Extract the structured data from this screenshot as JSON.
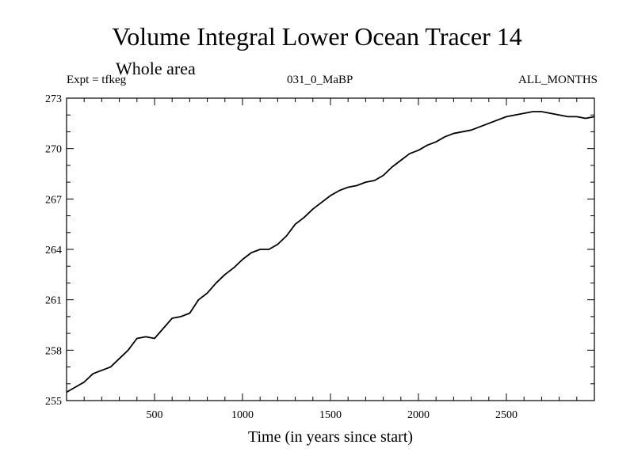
{
  "chart_data": {
    "type": "line",
    "title": "Volume Integral Lower Ocean Tracer 14",
    "subtitle": "Whole area",
    "experiment": "Expt = tfkeg",
    "period": "031_0_MaBP",
    "months": "ALL_MONTHS",
    "xlabel": "Time (in years since start)",
    "ylabel": "",
    "xlim": [
      0,
      3000
    ],
    "ylim": [
      255,
      273
    ],
    "xticks": [
      500,
      1000,
      1500,
      2000,
      2500
    ],
    "yticks": [
      255,
      258,
      261,
      264,
      267,
      270,
      273
    ],
    "grid": false,
    "series": [
      {
        "x": [
          0,
          50,
          100,
          150,
          200,
          250,
          300,
          350,
          400,
          450,
          500,
          550,
          600,
          650,
          700,
          750,
          800,
          850,
          900,
          950,
          1000,
          1050,
          1100,
          1150,
          1200,
          1250,
          1300,
          1350,
          1400,
          1450,
          1500,
          1550,
          1600,
          1650,
          1700,
          1750,
          1800,
          1850,
          1900,
          1950,
          2000,
          2050,
          2100,
          2150,
          2200,
          2250,
          2300,
          2350,
          2400,
          2450,
          2500,
          2550,
          2600,
          2650,
          2700,
          2750,
          2800,
          2850,
          2900,
          2950,
          3000
        ],
        "y": [
          255.5,
          255.8,
          256.1,
          256.6,
          256.8,
          257.0,
          257.5,
          258.0,
          258.7,
          258.8,
          258.7,
          259.3,
          259.9,
          260.0,
          260.2,
          261.0,
          261.4,
          262.0,
          262.5,
          262.9,
          263.4,
          263.8,
          264.0,
          264.0,
          264.3,
          264.8,
          265.5,
          265.9,
          266.4,
          266.8,
          267.2,
          267.5,
          267.7,
          267.8,
          268.0,
          268.1,
          268.4,
          268.9,
          269.3,
          269.7,
          269.9,
          270.2,
          270.4,
          270.7,
          270.9,
          271.0,
          271.1,
          271.3,
          271.5,
          271.7,
          271.9,
          272.0,
          272.1,
          272.2,
          272.2,
          272.1,
          272.0,
          271.9,
          271.9,
          271.8,
          271.9
        ]
      }
    ]
  }
}
